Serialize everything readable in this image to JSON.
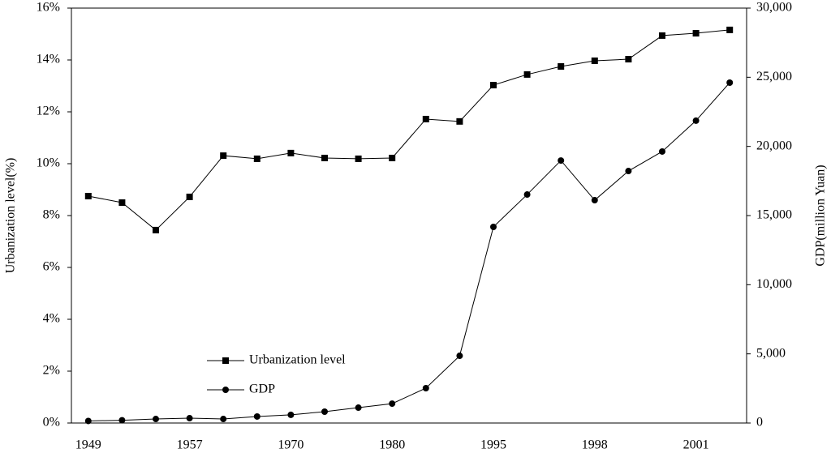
{
  "chart_data": {
    "type": "line",
    "y_label": "Urbanization level(%)",
    "y2_label": "GDP(million Yuan)",
    "categories": [
      "1949",
      null,
      null,
      "1957",
      null,
      null,
      "1970",
      null,
      null,
      "1980",
      null,
      null,
      "1995",
      null,
      null,
      "1998",
      null,
      null,
      "2001",
      null
    ],
    "series": [
      {
        "name": "Urbanization level",
        "color": "#000000",
        "marker": "square",
        "values": [
          8.75,
          8.5,
          7.44,
          8.72,
          10.31,
          10.19,
          10.41,
          10.22,
          10.19,
          10.22,
          11.72,
          11.63,
          13.03,
          13.44,
          13.75,
          13.97,
          14.03,
          14.94,
          15.03,
          15.16
        ]
      },
      {
        "name": "GDP",
        "color": "#000000",
        "marker": "circle",
        "axis": "y2",
        "values": [
          150,
          200,
          290,
          350,
          290,
          470,
          590,
          820,
          1110,
          1400,
          2520,
          4860,
          14180,
          16520,
          18980,
          16110,
          18220,
          19630,
          21860,
          24610
        ]
      }
    ],
    "ylim": [
      0,
      16
    ],
    "yticks": [
      {
        "value": 0,
        "label": "0%"
      },
      {
        "value": 2,
        "label": "2%"
      },
      {
        "value": 4,
        "label": "4%"
      },
      {
        "value": 6,
        "label": "6%"
      },
      {
        "value": 8,
        "label": "8%"
      },
      {
        "value": 10,
        "label": "10%"
      },
      {
        "value": 12,
        "label": "12%"
      },
      {
        "value": 14,
        "label": "14%"
      },
      {
        "value": 16,
        "label": "16%"
      }
    ],
    "y2lim": [
      0,
      30000
    ],
    "y2ticks": [
      0,
      {
        "value": 5000,
        "label": "5,000"
      },
      {
        "value": 10000,
        "label": "10,000"
      },
      {
        "value": 15000,
        "label": "15,000"
      },
      {
        "value": 20000,
        "label": "20,000"
      },
      {
        "value": 25000,
        "label": "25,000"
      },
      {
        "value": 30000,
        "label": "30,000"
      }
    ],
    "grid": false,
    "legend": "lower left"
  }
}
